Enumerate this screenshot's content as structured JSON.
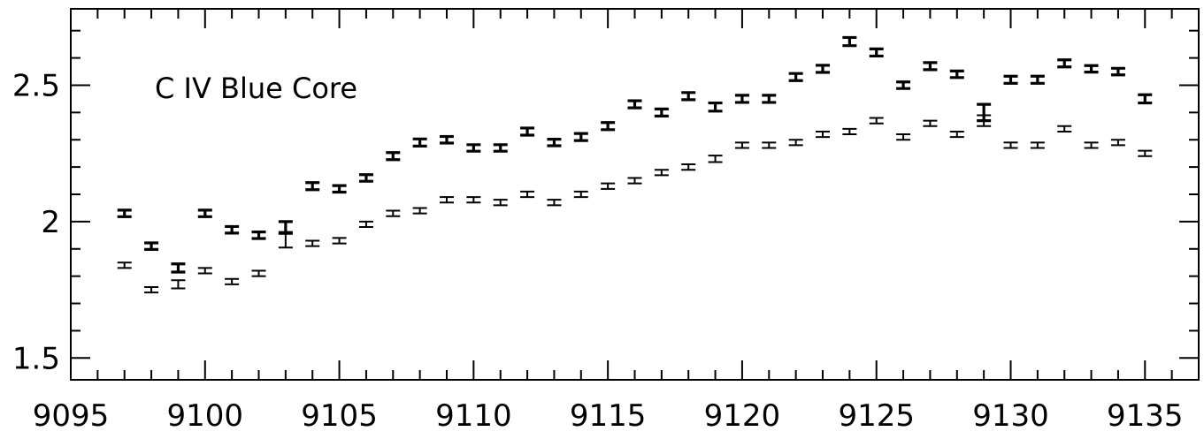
{
  "chart_data": {
    "type": "scatter",
    "annotation": "C IV Blue Core",
    "xlim": [
      9095,
      9137
    ],
    "ylim": [
      1.42,
      2.78
    ],
    "x_ticks": [
      {
        "value": 9095,
        "label": "9095"
      },
      {
        "value": 9100,
        "label": "9100"
      },
      {
        "value": 9105,
        "label": "9105"
      },
      {
        "value": 9110,
        "label": "9110"
      },
      {
        "value": 9115,
        "label": "9115"
      },
      {
        "value": 9120,
        "label": "9120"
      },
      {
        "value": 9125,
        "label": "9125"
      },
      {
        "value": 9130,
        "label": "9130"
      },
      {
        "value": 9135,
        "label": "9135"
      }
    ],
    "y_ticks": [
      {
        "value": 1.5,
        "label": "1.5"
      },
      {
        "value": 2.0,
        "label": "2"
      },
      {
        "value": 2.5,
        "label": "2.5"
      }
    ],
    "series": [
      {
        "marker": "error-bar-bold",
        "points": [
          {
            "x": 9097,
            "y": 2.03,
            "err": 0.012
          },
          {
            "x": 9098,
            "y": 1.91,
            "err": 0.012
          },
          {
            "x": 9099,
            "y": 1.83,
            "err": 0.015
          },
          {
            "x": 9100,
            "y": 2.03,
            "err": 0.012
          },
          {
            "x": 9101,
            "y": 1.97,
            "err": 0.012
          },
          {
            "x": 9102,
            "y": 1.95,
            "err": 0.012
          },
          {
            "x": 9103,
            "y": 1.98,
            "err": 0.02
          },
          {
            "x": 9104,
            "y": 2.13,
            "err": 0.013
          },
          {
            "x": 9105,
            "y": 2.12,
            "err": 0.012
          },
          {
            "x": 9106,
            "y": 2.16,
            "err": 0.012
          },
          {
            "x": 9107,
            "y": 2.24,
            "err": 0.013
          },
          {
            "x": 9108,
            "y": 2.29,
            "err": 0.013
          },
          {
            "x": 9109,
            "y": 2.3,
            "err": 0.012
          },
          {
            "x": 9110,
            "y": 2.27,
            "err": 0.012
          },
          {
            "x": 9111,
            "y": 2.27,
            "err": 0.012
          },
          {
            "x": 9112,
            "y": 2.33,
            "err": 0.013
          },
          {
            "x": 9113,
            "y": 2.29,
            "err": 0.012
          },
          {
            "x": 9114,
            "y": 2.31,
            "err": 0.013
          },
          {
            "x": 9115,
            "y": 2.35,
            "err": 0.013
          },
          {
            "x": 9116,
            "y": 2.43,
            "err": 0.013
          },
          {
            "x": 9117,
            "y": 2.4,
            "err": 0.013
          },
          {
            "x": 9118,
            "y": 2.46,
            "err": 0.013
          },
          {
            "x": 9119,
            "y": 2.42,
            "err": 0.015
          },
          {
            "x": 9120,
            "y": 2.45,
            "err": 0.013
          },
          {
            "x": 9121,
            "y": 2.45,
            "err": 0.013
          },
          {
            "x": 9122,
            "y": 2.53,
            "err": 0.013
          },
          {
            "x": 9123,
            "y": 2.56,
            "err": 0.013
          },
          {
            "x": 9124,
            "y": 2.66,
            "err": 0.015
          },
          {
            "x": 9125,
            "y": 2.62,
            "err": 0.013
          },
          {
            "x": 9126,
            "y": 2.5,
            "err": 0.012
          },
          {
            "x": 9127,
            "y": 2.57,
            "err": 0.013
          },
          {
            "x": 9128,
            "y": 2.54,
            "err": 0.012
          },
          {
            "x": 9129,
            "y": 2.4,
            "err": 0.03
          },
          {
            "x": 9130,
            "y": 2.52,
            "err": 0.013
          },
          {
            "x": 9131,
            "y": 2.52,
            "err": 0.013
          },
          {
            "x": 9132,
            "y": 2.58,
            "err": 0.013
          },
          {
            "x": 9133,
            "y": 2.56,
            "err": 0.012
          },
          {
            "x": 9134,
            "y": 2.55,
            "err": 0.012
          },
          {
            "x": 9135,
            "y": 2.45,
            "err": 0.015
          }
        ]
      },
      {
        "marker": "error-bar-thin",
        "points": [
          {
            "x": 9097,
            "y": 1.84,
            "err": 0.01
          },
          {
            "x": 9098,
            "y": 1.75,
            "err": 0.01
          },
          {
            "x": 9099,
            "y": 1.77,
            "err": 0.015
          },
          {
            "x": 9100,
            "y": 1.82,
            "err": 0.01
          },
          {
            "x": 9101,
            "y": 1.78,
            "err": 0.01
          },
          {
            "x": 9102,
            "y": 1.81,
            "err": 0.01
          },
          {
            "x": 9103,
            "y": 1.93,
            "err": 0.025
          },
          {
            "x": 9104,
            "y": 1.92,
            "err": 0.01
          },
          {
            "x": 9105,
            "y": 1.93,
            "err": 0.01
          },
          {
            "x": 9106,
            "y": 1.99,
            "err": 0.01
          },
          {
            "x": 9107,
            "y": 2.03,
            "err": 0.01
          },
          {
            "x": 9108,
            "y": 2.04,
            "err": 0.01
          },
          {
            "x": 9109,
            "y": 2.08,
            "err": 0.01
          },
          {
            "x": 9110,
            "y": 2.08,
            "err": 0.01
          },
          {
            "x": 9111,
            "y": 2.07,
            "err": 0.01
          },
          {
            "x": 9112,
            "y": 2.1,
            "err": 0.01
          },
          {
            "x": 9113,
            "y": 2.07,
            "err": 0.01
          },
          {
            "x": 9114,
            "y": 2.1,
            "err": 0.01
          },
          {
            "x": 9115,
            "y": 2.13,
            "err": 0.01
          },
          {
            "x": 9116,
            "y": 2.15,
            "err": 0.01
          },
          {
            "x": 9117,
            "y": 2.18,
            "err": 0.01
          },
          {
            "x": 9118,
            "y": 2.2,
            "err": 0.01
          },
          {
            "x": 9119,
            "y": 2.23,
            "err": 0.012
          },
          {
            "x": 9120,
            "y": 2.28,
            "err": 0.01
          },
          {
            "x": 9121,
            "y": 2.28,
            "err": 0.01
          },
          {
            "x": 9122,
            "y": 2.29,
            "err": 0.01
          },
          {
            "x": 9123,
            "y": 2.32,
            "err": 0.01
          },
          {
            "x": 9124,
            "y": 2.33,
            "err": 0.01
          },
          {
            "x": 9125,
            "y": 2.37,
            "err": 0.01
          },
          {
            "x": 9126,
            "y": 2.31,
            "err": 0.01
          },
          {
            "x": 9127,
            "y": 2.36,
            "err": 0.01
          },
          {
            "x": 9128,
            "y": 2.32,
            "err": 0.01
          },
          {
            "x": 9129,
            "y": 2.37,
            "err": 0.02
          },
          {
            "x": 9130,
            "y": 2.28,
            "err": 0.01
          },
          {
            "x": 9131,
            "y": 2.28,
            "err": 0.01
          },
          {
            "x": 9132,
            "y": 2.34,
            "err": 0.01
          },
          {
            "x": 9133,
            "y": 2.28,
            "err": 0.01
          },
          {
            "x": 9134,
            "y": 2.29,
            "err": 0.01
          },
          {
            "x": 9135,
            "y": 2.25,
            "err": 0.01
          }
        ]
      }
    ]
  }
}
